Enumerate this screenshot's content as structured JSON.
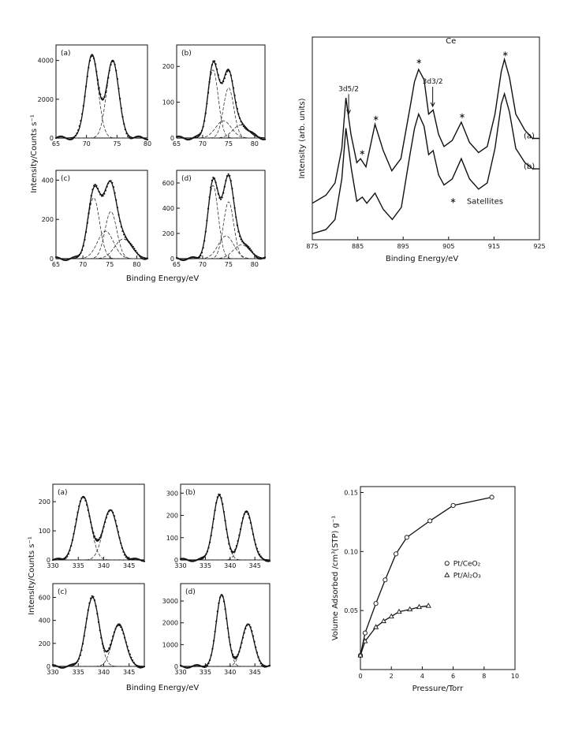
{
  "chart_data": [
    {
      "type": "line",
      "grid": false,
      "xlabel": "Binding  Energy/eV",
      "ylabel": "Intensity/Counts s⁻¹",
      "panels": [
        {
          "label": "(a)",
          "xlim": [
            65,
            80
          ],
          "xticks": [
            65,
            70,
            75,
            80
          ],
          "ylim": [
            0,
            4800
          ],
          "yticks": [
            0,
            2000,
            4000
          ],
          "peaks": [
            {
              "center": 70.9,
              "height": 4300,
              "width": 1.0
            },
            {
              "center": 74.3,
              "height": 4000,
              "width": 1.0
            }
          ]
        },
        {
          "label": "(b)",
          "xlim": [
            65,
            82
          ],
          "xticks": [
            65,
            70,
            75,
            80
          ],
          "ylim": [
            0,
            260
          ],
          "yticks": [
            0,
            100,
            200
          ],
          "peaks": [
            {
              "center": 72.0,
              "height": 190,
              "width": 1.0
            },
            {
              "center": 75.0,
              "height": 140,
              "width": 1.0
            },
            {
              "center": 74.0,
              "height": 48,
              "width": 1.5
            },
            {
              "center": 77.3,
              "height": 36,
              "width": 1.5
            }
          ]
        },
        {
          "label": "(c)",
          "xlim": [
            65,
            82
          ],
          "xticks": [
            65,
            70,
            75,
            80
          ],
          "ylim": [
            0,
            450
          ],
          "yticks": [
            0,
            200,
            400
          ],
          "peaks": [
            {
              "center": 72.0,
              "height": 310,
              "width": 1.1
            },
            {
              "center": 75.2,
              "height": 240,
              "width": 1.1
            },
            {
              "center": 74.2,
              "height": 140,
              "width": 1.5
            },
            {
              "center": 77.5,
              "height": 100,
              "width": 1.6
            }
          ]
        },
        {
          "label": "(d)",
          "xlim": [
            65,
            82
          ],
          "xticks": [
            65,
            70,
            75,
            80
          ],
          "ylim": [
            0,
            700
          ],
          "yticks": [
            0,
            200,
            400,
            600
          ],
          "peaks": [
            {
              "center": 72.0,
              "height": 580,
              "width": 1.0
            },
            {
              "center": 75.0,
              "height": 450,
              "width": 1.0
            },
            {
              "center": 74.5,
              "height": 180,
              "width": 1.5
            },
            {
              "center": 77.5,
              "height": 110,
              "width": 1.6
            }
          ]
        }
      ]
    },
    {
      "type": "line",
      "grid": false,
      "title": "Ce",
      "xlabel": "Binding  Energy/eV",
      "ylabel": "Intensity (arb. units)",
      "xlim": [
        875,
        925
      ],
      "xticks": [
        875,
        885,
        895,
        905,
        915,
        925
      ],
      "series": [
        {
          "name": "(a)",
          "x": [
            875,
            878,
            880,
            881.5,
            882.4,
            883.5,
            884.8,
            885.6,
            886.8,
            888.8,
            890.6,
            892.5,
            894.5,
            896.5,
            897.5,
            898.4,
            899.6,
            900.6,
            901.6,
            902.8,
            904.0,
            905.8,
            907.8,
            909.6,
            911.6,
            913.5,
            915.2,
            916.6,
            917.3,
            918.4,
            919.8,
            921.8,
            923.5,
            925
          ],
          "y": [
            0.18,
            0.22,
            0.28,
            0.45,
            0.7,
            0.52,
            0.38,
            0.4,
            0.36,
            0.57,
            0.44,
            0.34,
            0.4,
            0.65,
            0.78,
            0.84,
            0.79,
            0.62,
            0.64,
            0.52,
            0.46,
            0.49,
            0.58,
            0.48,
            0.43,
            0.46,
            0.62,
            0.83,
            0.89,
            0.8,
            0.62,
            0.54,
            0.5,
            0.5
          ]
        },
        {
          "name": "(b)",
          "x": [
            875,
            878,
            880,
            881.5,
            882.4,
            883.6,
            884.8,
            886.0,
            887.0,
            888.8,
            890.6,
            892.6,
            894.6,
            896.5,
            897.5,
            898.4,
            899.6,
            900.6,
            901.6,
            902.8,
            904.0,
            905.8,
            907.8,
            909.6,
            911.6,
            913.5,
            915.2,
            916.6,
            917.3,
            918.4,
            919.8,
            921.8,
            923.5,
            925
          ],
          "y": [
            0.03,
            0.05,
            0.1,
            0.3,
            0.55,
            0.35,
            0.19,
            0.21,
            0.18,
            0.23,
            0.15,
            0.1,
            0.16,
            0.42,
            0.55,
            0.62,
            0.56,
            0.42,
            0.44,
            0.32,
            0.27,
            0.3,
            0.4,
            0.3,
            0.25,
            0.28,
            0.45,
            0.67,
            0.72,
            0.63,
            0.45,
            0.38,
            0.35,
            0.35
          ]
        }
      ],
      "annotations": [
        {
          "text": "3d5/2",
          "x": 883
        },
        {
          "text": "3d3/2",
          "x": 901.5
        },
        {
          "text": "*",
          "x": 886
        },
        {
          "text": "*",
          "x": 889
        },
        {
          "text": "*",
          "x": 898.5
        },
        {
          "text": "*",
          "x": 908
        },
        {
          "text": "*",
          "x": 917.5
        }
      ],
      "legend": [
        {
          "marker": "*",
          "text": "Satellites"
        }
      ]
    },
    {
      "type": "line",
      "grid": false,
      "xlabel": "Binding  Energy/eV",
      "ylabel": "Intensity/Counts s⁻¹",
      "panels": [
        {
          "label": "(a)",
          "xlim": [
            330,
            348
          ],
          "xticks": [
            330,
            335,
            340,
            345
          ],
          "ylim": [
            0,
            260
          ],
          "yticks": [
            0,
            100,
            200
          ],
          "peaks": [
            {
              "center": 336.0,
              "height": 218,
              "width": 1.4
            },
            {
              "center": 341.3,
              "height": 172,
              "width": 1.4
            }
          ]
        },
        {
          "label": "(b)",
          "xlim": [
            330,
            348
          ],
          "xticks": [
            330,
            335,
            340,
            345
          ],
          "ylim": [
            0,
            340
          ],
          "yticks": [
            0,
            100,
            200,
            300
          ],
          "peaks": [
            {
              "center": 337.8,
              "height": 290,
              "width": 1.2
            },
            {
              "center": 343.3,
              "height": 220,
              "width": 1.2
            }
          ]
        },
        {
          "label": "(c)",
          "xlim": [
            330,
            348
          ],
          "xticks": [
            330,
            335,
            340,
            345
          ],
          "ylim": [
            0,
            720
          ],
          "yticks": [
            0,
            200,
            400,
            600
          ],
          "peaks": [
            {
              "center": 337.8,
              "height": 600,
              "width": 1.3
            },
            {
              "center": 343.0,
              "height": 370,
              "width": 1.3
            }
          ]
        },
        {
          "label": "(d)",
          "xlim": [
            330,
            348
          ],
          "xticks": [
            330,
            335,
            340,
            345
          ],
          "ylim": [
            0,
            3800
          ],
          "yticks": [
            0,
            1000,
            2000,
            3000
          ],
          "peaks": [
            {
              "center": 338.3,
              "height": 3300,
              "width": 1.1
            },
            {
              "center": 343.6,
              "height": 1950,
              "width": 1.2
            }
          ]
        }
      ]
    },
    {
      "type": "scatter",
      "grid": false,
      "xlabel": "Pressure/Torr",
      "ylabel": "Volume Adsorbed /cm³(STP) g⁻¹",
      "xlim": [
        0,
        10
      ],
      "ylim": [
        0,
        0.155
      ],
      "xticks": [
        0,
        2,
        4,
        6,
        8,
        10
      ],
      "yticks": [
        0.05,
        0.1,
        0.15
      ],
      "series": [
        {
          "name": "Pt/CeO₂",
          "marker": "circle",
          "x": [
            0.0,
            0.3,
            1.0,
            1.6,
            2.3,
            3.0,
            4.5,
            6.0,
            8.5
          ],
          "y": [
            0.012,
            0.031,
            0.056,
            0.076,
            0.098,
            0.112,
            0.126,
            0.139,
            0.146
          ]
        },
        {
          "name": "Pt/Al₂O₃",
          "marker": "triangle",
          "x": [
            0.0,
            0.3,
            1.0,
            1.5,
            2.0,
            2.5,
            3.2,
            3.8,
            4.4
          ],
          "y": [
            0.012,
            0.024,
            0.036,
            0.041,
            0.045,
            0.049,
            0.051,
            0.053,
            0.054
          ]
        }
      ],
      "legend_position": "right"
    }
  ]
}
